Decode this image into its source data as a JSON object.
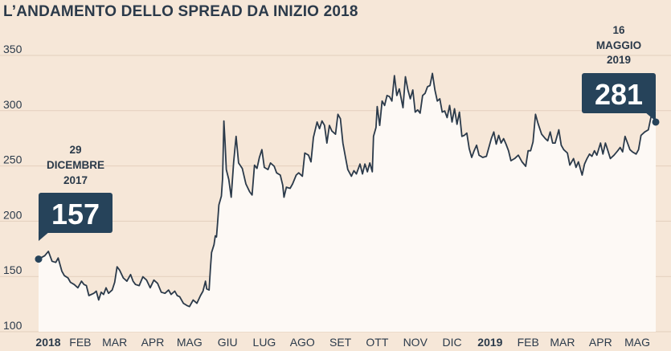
{
  "title": "L’ANDAMENTO DELLO SPREAD DA INIZIO 2018",
  "colors": {
    "background": "#f6e7d8",
    "area": "#fdf9f5",
    "line": "#2b3a4a",
    "gridline": "#e3cfbd",
    "callout": "#26435a",
    "text": "#2b3a4a"
  },
  "chart_data": {
    "type": "area",
    "title": "L’ANDAMENTO DELLO SPREAD DA INIZIO 2018",
    "xlabel": "",
    "ylabel": "",
    "ylim": [
      100,
      350
    ],
    "yticks": [
      100,
      150,
      200,
      250,
      300,
      350
    ],
    "grid": true,
    "x_range": [
      "2017-12-29",
      "2019-05-16"
    ],
    "month_labels": [
      {
        "label": "2018",
        "date": "2018-01-01",
        "bold": true
      },
      {
        "label": "FEB",
        "date": "2018-02-01",
        "bold": false
      },
      {
        "label": "MAR",
        "date": "2018-03-01",
        "bold": false
      },
      {
        "label": "APR",
        "date": "2018-04-01",
        "bold": false
      },
      {
        "label": "MAG",
        "date": "2018-05-01",
        "bold": false
      },
      {
        "label": "GIU",
        "date": "2018-06-01",
        "bold": false
      },
      {
        "label": "LUG",
        "date": "2018-07-01",
        "bold": false
      },
      {
        "label": "AGO",
        "date": "2018-08-01",
        "bold": false
      },
      {
        "label": "SET",
        "date": "2018-09-01",
        "bold": false
      },
      {
        "label": "OTT",
        "date": "2018-10-01",
        "bold": false
      },
      {
        "label": "NOV",
        "date": "2018-11-01",
        "bold": false
      },
      {
        "label": "DIC",
        "date": "2018-12-01",
        "bold": false
      },
      {
        "label": "2019",
        "date": "2019-01-01",
        "bold": true
      },
      {
        "label": "FEB",
        "date": "2019-02-01",
        "bold": false
      },
      {
        "label": "MAR",
        "date": "2019-03-01",
        "bold": false
      },
      {
        "label": "APR",
        "date": "2019-04-01",
        "bold": false
      },
      {
        "label": "MAG",
        "date": "2019-05-01",
        "bold": false
      }
    ],
    "series": [
      {
        "points": [
          [
            "2017-12-29",
            157
          ],
          [
            "2018-01-03",
            160
          ],
          [
            "2018-01-06",
            164
          ],
          [
            "2018-01-09",
            155
          ],
          [
            "2018-01-12",
            154
          ],
          [
            "2018-01-14",
            158
          ],
          [
            "2018-01-17",
            146
          ],
          [
            "2018-01-19",
            142
          ],
          [
            "2018-01-22",
            140
          ],
          [
            "2018-01-24",
            136
          ],
          [
            "2018-01-27",
            134
          ],
          [
            "2018-01-30",
            131
          ],
          [
            "2018-02-02",
            137
          ],
          [
            "2018-02-04",
            134
          ],
          [
            "2018-02-06",
            133
          ],
          [
            "2018-02-08",
            124
          ],
          [
            "2018-02-12",
            126
          ],
          [
            "2018-02-14",
            128
          ],
          [
            "2018-02-16",
            120
          ],
          [
            "2018-02-18",
            127
          ],
          [
            "2018-02-20",
            125
          ],
          [
            "2018-02-22",
            131
          ],
          [
            "2018-02-24",
            126
          ],
          [
            "2018-02-27",
            129
          ],
          [
            "2018-03-01",
            136
          ],
          [
            "2018-03-03",
            150
          ],
          [
            "2018-03-05",
            147
          ],
          [
            "2018-03-08",
            140
          ],
          [
            "2018-03-11",
            137
          ],
          [
            "2018-03-14",
            143
          ],
          [
            "2018-03-16",
            137
          ],
          [
            "2018-03-18",
            134
          ],
          [
            "2018-03-21",
            133
          ],
          [
            "2018-03-24",
            141
          ],
          [
            "2018-03-27",
            138
          ],
          [
            "2018-03-30",
            131
          ],
          [
            "2018-04-02",
            138
          ],
          [
            "2018-04-05",
            135
          ],
          [
            "2018-04-08",
            127
          ],
          [
            "2018-04-11",
            126
          ],
          [
            "2018-04-14",
            129
          ],
          [
            "2018-04-16",
            125
          ],
          [
            "2018-04-19",
            128
          ],
          [
            "2018-04-21",
            124
          ],
          [
            "2018-04-23",
            123
          ],
          [
            "2018-04-26",
            117
          ],
          [
            "2018-04-29",
            115
          ],
          [
            "2018-05-01",
            114
          ],
          [
            "2018-05-04",
            120
          ],
          [
            "2018-05-07",
            117
          ],
          [
            "2018-05-10",
            124
          ],
          [
            "2018-05-12",
            128
          ],
          [
            "2018-05-14",
            137
          ],
          [
            "2018-05-15",
            130
          ],
          [
            "2018-05-17",
            129
          ],
          [
            "2018-05-18",
            148
          ],
          [
            "2018-05-19",
            163
          ],
          [
            "2018-05-21",
            170
          ],
          [
            "2018-05-22",
            178
          ],
          [
            "2018-05-23",
            177
          ],
          [
            "2018-05-24",
            191
          ],
          [
            "2018-05-25",
            206
          ],
          [
            "2018-05-27",
            214
          ],
          [
            "2018-05-28",
            230
          ],
          [
            "2018-05-29",
            282
          ],
          [
            "2018-05-30",
            262
          ],
          [
            "2018-05-31",
            238
          ],
          [
            "2018-06-02",
            229
          ],
          [
            "2018-06-04",
            213
          ],
          [
            "2018-06-06",
            245
          ],
          [
            "2018-06-08",
            268
          ],
          [
            "2018-06-10",
            244
          ],
          [
            "2018-06-13",
            239
          ],
          [
            "2018-06-16",
            225
          ],
          [
            "2018-06-19",
            218
          ],
          [
            "2018-06-21",
            215
          ],
          [
            "2018-06-23",
            242
          ],
          [
            "2018-06-25",
            239
          ],
          [
            "2018-06-27",
            249
          ],
          [
            "2018-06-29",
            256
          ],
          [
            "2018-07-01",
            240
          ],
          [
            "2018-07-04",
            238
          ],
          [
            "2018-07-06",
            244
          ],
          [
            "2018-07-09",
            241
          ],
          [
            "2018-07-11",
            235
          ],
          [
            "2018-07-14",
            233
          ],
          [
            "2018-07-16",
            224
          ],
          [
            "2018-07-17",
            213
          ],
          [
            "2018-07-19",
            222
          ],
          [
            "2018-07-22",
            221
          ],
          [
            "2018-07-24",
            225
          ],
          [
            "2018-07-27",
            233
          ],
          [
            "2018-07-29",
            235
          ],
          [
            "2018-08-01",
            232
          ],
          [
            "2018-08-03",
            253
          ],
          [
            "2018-08-06",
            251
          ],
          [
            "2018-08-08",
            245
          ],
          [
            "2018-08-10",
            267
          ],
          [
            "2018-08-13",
            281
          ],
          [
            "2018-08-15",
            275
          ],
          [
            "2018-08-17",
            282
          ],
          [
            "2018-08-19",
            278
          ],
          [
            "2018-08-21",
            262
          ],
          [
            "2018-08-23",
            278
          ],
          [
            "2018-08-25",
            273
          ],
          [
            "2018-08-28",
            270
          ],
          [
            "2018-08-30",
            288
          ],
          [
            "2018-09-01",
            284
          ],
          [
            "2018-09-03",
            262
          ],
          [
            "2018-09-05",
            250
          ],
          [
            "2018-09-07",
            238
          ],
          [
            "2018-09-10",
            232
          ],
          [
            "2018-09-12",
            237
          ],
          [
            "2018-09-14",
            234
          ],
          [
            "2018-09-17",
            243
          ],
          [
            "2018-09-19",
            234
          ],
          [
            "2018-09-21",
            243
          ],
          [
            "2018-09-23",
            236
          ],
          [
            "2018-09-25",
            244
          ],
          [
            "2018-09-27",
            236
          ],
          [
            "2018-09-28",
            268
          ],
          [
            "2018-09-30",
            276
          ],
          [
            "2018-10-01",
            295
          ],
          [
            "2018-10-03",
            278
          ],
          [
            "2018-10-05",
            300
          ],
          [
            "2018-10-07",
            296
          ],
          [
            "2018-10-09",
            305
          ],
          [
            "2018-10-11",
            304
          ],
          [
            "2018-10-13",
            300
          ],
          [
            "2018-10-15",
            323
          ],
          [
            "2018-10-17",
            305
          ],
          [
            "2018-10-19",
            311
          ],
          [
            "2018-10-22",
            294
          ],
          [
            "2018-10-24",
            322
          ],
          [
            "2018-10-26",
            310
          ],
          [
            "2018-10-28",
            302
          ],
          [
            "2018-10-30",
            310
          ],
          [
            "2018-11-01",
            290
          ],
          [
            "2018-11-03",
            292
          ],
          [
            "2018-11-05",
            289
          ],
          [
            "2018-11-07",
            305
          ],
          [
            "2018-11-09",
            307
          ],
          [
            "2018-11-11",
            313
          ],
          [
            "2018-11-13",
            314
          ],
          [
            "2018-11-15",
            325
          ],
          [
            "2018-11-17",
            310
          ],
          [
            "2018-11-19",
            300
          ],
          [
            "2018-11-21",
            302
          ],
          [
            "2018-11-23",
            290
          ],
          [
            "2018-11-25",
            291
          ],
          [
            "2018-11-27",
            285
          ],
          [
            "2018-11-29",
            296
          ],
          [
            "2018-12-01",
            281
          ],
          [
            "2018-12-03",
            293
          ],
          [
            "2018-12-05",
            279
          ],
          [
            "2018-12-07",
            290
          ],
          [
            "2018-12-09",
            268
          ],
          [
            "2018-12-11",
            269
          ],
          [
            "2018-12-13",
            271
          ],
          [
            "2018-12-15",
            257
          ],
          [
            "2018-12-17",
            249
          ],
          [
            "2018-12-19",
            255
          ],
          [
            "2018-12-21",
            260
          ],
          [
            "2018-12-23",
            251
          ],
          [
            "2018-12-26",
            249
          ],
          [
            "2018-12-29",
            250
          ],
          [
            "2019-01-02",
            266
          ],
          [
            "2019-01-04",
            272
          ],
          [
            "2019-01-06",
            261
          ],
          [
            "2019-01-08",
            269
          ],
          [
            "2019-01-10",
            262
          ],
          [
            "2019-01-12",
            266
          ],
          [
            "2019-01-14",
            261
          ],
          [
            "2019-01-16",
            255
          ],
          [
            "2019-01-18",
            246
          ],
          [
            "2019-01-21",
            248
          ],
          [
            "2019-01-24",
            251
          ],
          [
            "2019-01-27",
            245
          ],
          [
            "2019-01-30",
            241
          ],
          [
            "2019-02-01",
            255
          ],
          [
            "2019-02-03",
            255
          ],
          [
            "2019-02-05",
            263
          ],
          [
            "2019-02-07",
            288
          ],
          [
            "2019-02-09",
            280
          ],
          [
            "2019-02-12",
            270
          ],
          [
            "2019-02-15",
            266
          ],
          [
            "2019-02-17",
            264
          ],
          [
            "2019-02-19",
            272
          ],
          [
            "2019-02-21",
            262
          ],
          [
            "2019-02-23",
            262
          ],
          [
            "2019-02-26",
            274
          ],
          [
            "2019-02-28",
            260
          ],
          [
            "2019-03-02",
            256
          ],
          [
            "2019-03-05",
            253
          ],
          [
            "2019-03-07",
            242
          ],
          [
            "2019-03-10",
            248
          ],
          [
            "2019-03-12",
            240
          ],
          [
            "2019-03-14",
            245
          ],
          [
            "2019-03-17",
            233
          ],
          [
            "2019-03-19",
            243
          ],
          [
            "2019-03-21",
            248
          ],
          [
            "2019-03-23",
            252
          ],
          [
            "2019-03-25",
            250
          ],
          [
            "2019-03-27",
            255
          ],
          [
            "2019-03-29",
            251
          ],
          [
            "2019-04-01",
            262
          ],
          [
            "2019-04-03",
            252
          ],
          [
            "2019-04-05",
            262
          ],
          [
            "2019-04-07",
            255
          ],
          [
            "2019-04-09",
            248
          ],
          [
            "2019-04-12",
            251
          ],
          [
            "2019-04-15",
            255
          ],
          [
            "2019-04-17",
            258
          ],
          [
            "2019-04-19",
            254
          ],
          [
            "2019-04-21",
            268
          ],
          [
            "2019-04-23",
            262
          ],
          [
            "2019-04-25",
            256
          ],
          [
            "2019-04-27",
            254
          ],
          [
            "2019-04-30",
            252
          ],
          [
            "2019-05-02",
            256
          ],
          [
            "2019-05-04",
            269
          ],
          [
            "2019-05-07",
            272
          ],
          [
            "2019-05-10",
            274
          ],
          [
            "2019-05-13",
            290
          ],
          [
            "2019-05-16",
            281
          ]
        ]
      }
    ],
    "annotations": [
      {
        "date_lines": [
          "29",
          "DICEMBRE",
          "2017"
        ],
        "value": "157",
        "x": "2017-12-29",
        "y": 157
      },
      {
        "date_lines": [
          "16",
          "MAGGIO",
          "2019"
        ],
        "value": "281",
        "x": "2019-05-16",
        "y": 281
      }
    ]
  }
}
